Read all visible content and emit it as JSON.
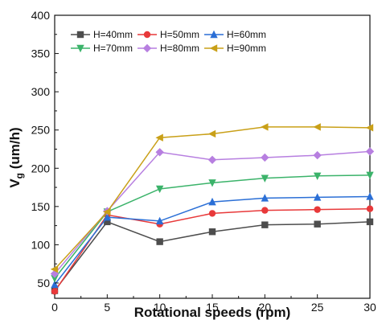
{
  "chart_data": {
    "type": "line",
    "title": "",
    "xlabel": "Rotational speeds (rpm)",
    "ylabel_main": "V",
    "ylabel_sub": "g",
    "ylabel_unit": " (um/h)",
    "xlim": [
      0,
      30
    ],
    "ylim": [
      30,
      400
    ],
    "x_ticks": [
      0,
      5,
      10,
      15,
      20,
      25,
      30
    ],
    "y_ticks": [
      50,
      100,
      150,
      200,
      250,
      300,
      350,
      400
    ],
    "x": [
      0,
      5,
      10,
      15,
      20,
      25,
      30
    ],
    "grid": false,
    "legend_position": "top-left",
    "series": [
      {
        "name": "H=40mm",
        "color": "#4d4d4d",
        "marker": "square",
        "values": [
          40,
          130,
          104,
          117,
          126,
          127,
          130
        ]
      },
      {
        "name": "H=50mm",
        "color": "#e8393a",
        "marker": "circle",
        "values": [
          39,
          139,
          127,
          141,
          145,
          146,
          147
        ]
      },
      {
        "name": "H=60mm",
        "color": "#2b6fd6",
        "marker": "triangle-up",
        "values": [
          48,
          136,
          131,
          156,
          161,
          162,
          163
        ]
      },
      {
        "name": "H=70mm",
        "color": "#3bb36a",
        "marker": "triangle-down",
        "values": [
          56,
          143,
          173,
          181,
          187,
          190,
          191
        ]
      },
      {
        "name": "H=80mm",
        "color": "#b77fe0",
        "marker": "diamond",
        "values": [
          62,
          144,
          221,
          211,
          214,
          217,
          222
        ]
      },
      {
        "name": "H=90mm",
        "color": "#c9a018",
        "marker": "triangle-left",
        "values": [
          68,
          143,
          240,
          245,
          254,
          254,
          253
        ]
      }
    ]
  }
}
